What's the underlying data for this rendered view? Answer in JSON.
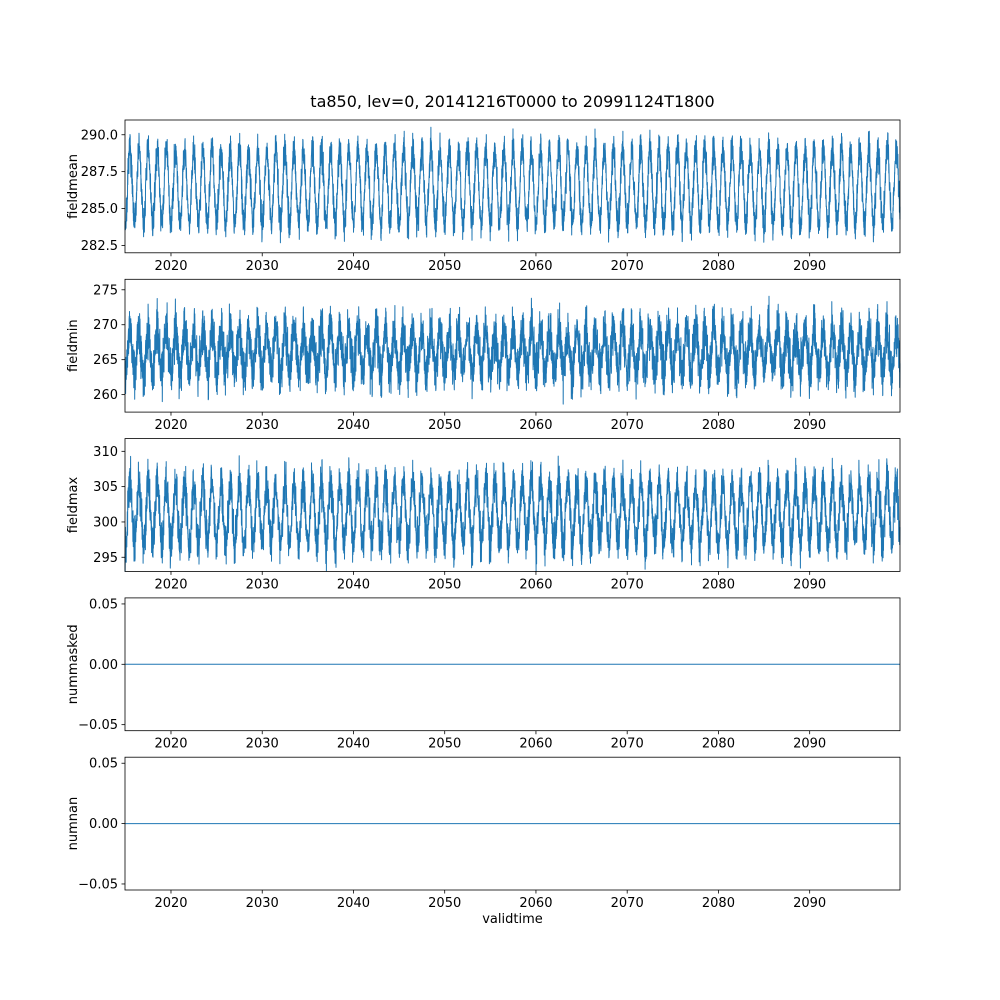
{
  "figure": {
    "title": "ta850, lev=0, 20141216T0000 to 20991124T1800",
    "xlabel": "validtime",
    "background": "#ffffff",
    "line_color": "#1f77b4",
    "spine_color": "#000000"
  },
  "chart_data": [
    {
      "type": "line",
      "name": "fieldmean",
      "ylabel": "fieldmean",
      "xlabel": "",
      "xlim": [
        2014.96,
        2099.9
      ],
      "xticks": [
        2020,
        2030,
        2040,
        2050,
        2060,
        2070,
        2080,
        2090
      ],
      "xtick_labels": [
        "2020",
        "2030",
        "2040",
        "2050",
        "2060",
        "2070",
        "2080",
        "2090"
      ],
      "ylim": [
        282.0,
        291.0
      ],
      "yticks": [
        282.5,
        285.0,
        287.5,
        290.0
      ],
      "ytick_labels": [
        "282.5",
        "285.0",
        "287.5",
        "290.0"
      ],
      "series": {
        "kind": "seasonal",
        "mean": 286.5,
        "amplitude": 2.55,
        "noise": 0.55,
        "points": 6000,
        "seed": 7
      },
      "summary": "Dense annual-cycle oscillation of area-mean 850 hPa temperature between about 282.5 and 290.5 K, 2015-2099"
    },
    {
      "type": "line",
      "name": "fieldmin",
      "ylabel": "fieldmin",
      "xlabel": "",
      "xlim": [
        2014.96,
        2099.9
      ],
      "xticks": [
        2020,
        2030,
        2040,
        2050,
        2060,
        2070,
        2080,
        2090
      ],
      "xtick_labels": [
        "2020",
        "2030",
        "2040",
        "2050",
        "2060",
        "2070",
        "2080",
        "2090"
      ],
      "ylim": [
        257.5,
        276.5
      ],
      "yticks": [
        260,
        265,
        270,
        275
      ],
      "ytick_labels": [
        "260",
        "265",
        "270",
        "275"
      ],
      "series": {
        "kind": "seasonal",
        "mean": 266.2,
        "amplitude": 3.1,
        "noise": 1.7,
        "points": 6000,
        "seed": 11
      },
      "summary": "Very noisy annual oscillation of field minimum between about 258 and 275.5 K"
    },
    {
      "type": "line",
      "name": "fieldmax",
      "ylabel": "fieldmax",
      "xlabel": "",
      "xlim": [
        2014.96,
        2099.9
      ],
      "xticks": [
        2020,
        2030,
        2040,
        2050,
        2060,
        2070,
        2080,
        2090
      ],
      "xtick_labels": [
        "2020",
        "2030",
        "2040",
        "2050",
        "2060",
        "2070",
        "2080",
        "2090"
      ],
      "ylim": [
        293.0,
        311.8
      ],
      "yticks": [
        295,
        300,
        305,
        310
      ],
      "ytick_labels": [
        "295",
        "300",
        "305",
        "310"
      ],
      "series": {
        "kind": "seasonal",
        "mean": 301.2,
        "amplitude": 4.3,
        "noise": 1.5,
        "points": 6000,
        "seed": 13
      },
      "summary": "Noisy annual oscillation of field maximum between about 294 and 311 K with peaks near 310"
    },
    {
      "type": "line",
      "name": "nummasked",
      "ylabel": "nummasked",
      "xlabel": "",
      "xlim": [
        2014.96,
        2099.9
      ],
      "xticks": [
        2020,
        2030,
        2040,
        2050,
        2060,
        2070,
        2080,
        2090
      ],
      "xtick_labels": [
        "2020",
        "2030",
        "2040",
        "2050",
        "2060",
        "2070",
        "2080",
        "2090"
      ],
      "ylim": [
        -0.055,
        0.055
      ],
      "yticks": [
        -0.05,
        0.0,
        0.05
      ],
      "ytick_labels": [
        "−0.05",
        "0.00",
        "0.05"
      ],
      "series": {
        "kind": "constant",
        "value": 0
      },
      "summary": "Constant zero line: no masked values for the whole period"
    },
    {
      "type": "line",
      "name": "numnan",
      "ylabel": "numnan",
      "xlabel": "validtime",
      "xlim": [
        2014.96,
        2099.9
      ],
      "xticks": [
        2020,
        2030,
        2040,
        2050,
        2060,
        2070,
        2080,
        2090
      ],
      "xtick_labels": [
        "2020",
        "2030",
        "2040",
        "2050",
        "2060",
        "2070",
        "2080",
        "2090"
      ],
      "ylim": [
        -0.055,
        0.055
      ],
      "yticks": [
        -0.05,
        0.0,
        0.05
      ],
      "ytick_labels": [
        "−0.05",
        "0.00",
        "0.05"
      ],
      "series": {
        "kind": "constant",
        "value": 0
      },
      "summary": "Constant zero line: no NaN values for the whole period"
    }
  ]
}
